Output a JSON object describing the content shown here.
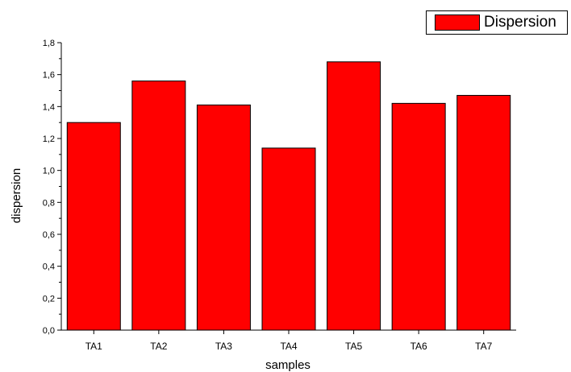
{
  "chart_data": {
    "type": "bar",
    "categories": [
      "TA1",
      "TA2",
      "TA3",
      "TA4",
      "TA5",
      "TA6",
      "TA7"
    ],
    "series": [
      {
        "name": "Dispersion",
        "values": [
          1.3,
          1.56,
          1.41,
          1.14,
          1.68,
          1.42,
          1.47
        ]
      }
    ],
    "xlabel": "samples",
    "ylabel": "dispersion",
    "ylim": [
      0,
      1.8
    ],
    "yticks": [
      "0,0",
      "0,2",
      "0,4",
      "0,6",
      "0,8",
      "1,0",
      "1,2",
      "1,4",
      "1,6",
      "1,8"
    ],
    "legend_position": "top-right",
    "grid": false,
    "bar_color": "#ff0000"
  }
}
